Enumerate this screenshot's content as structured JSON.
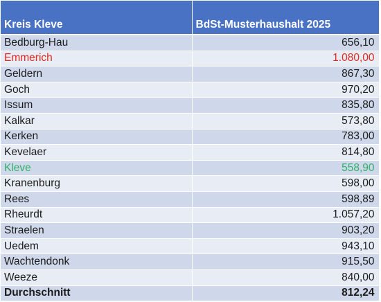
{
  "header": {
    "col1": "Kreis Kleve",
    "col2": "BdSt-Musterhaushalt 2025"
  },
  "rows": [
    {
      "name": "Bedburg-Hau",
      "value": "656,10",
      "highlight": ""
    },
    {
      "name": "Emmerich",
      "value": "1.080,00",
      "highlight": "red"
    },
    {
      "name": "Geldern",
      "value": "867,30",
      "highlight": ""
    },
    {
      "name": "Goch",
      "value": "970,20",
      "highlight": ""
    },
    {
      "name": "Issum",
      "value": "835,80",
      "highlight": ""
    },
    {
      "name": "Kalkar",
      "value": "573,80",
      "highlight": ""
    },
    {
      "name": "Kerken",
      "value": "783,00",
      "highlight": ""
    },
    {
      "name": "Kevelaer",
      "value": "814,80",
      "highlight": ""
    },
    {
      "name": "Kleve",
      "value": "558,90",
      "highlight": "green"
    },
    {
      "name": "Kranenburg",
      "value": "598,00",
      "highlight": ""
    },
    {
      "name": "Rees",
      "value": "598,89",
      "highlight": ""
    },
    {
      "name": "Rheurdt",
      "value": "1.057,20",
      "highlight": ""
    },
    {
      "name": "Straelen",
      "value": "903,20",
      "highlight": ""
    },
    {
      "name": "Uedem",
      "value": "943,10",
      "highlight": ""
    },
    {
      "name": "Wachtendonk",
      "value": "915,50",
      "highlight": ""
    },
    {
      "name": "Weeze",
      "value": "840,00",
      "highlight": ""
    }
  ],
  "total": {
    "name": "Durchschnitt",
    "value": "812,24"
  },
  "colors": {
    "header_bg": "#4a72c4",
    "row_odd": "#cfd8ea",
    "row_even": "#e8ecf5",
    "highest": "#e0281f",
    "lowest": "#2fb067"
  }
}
